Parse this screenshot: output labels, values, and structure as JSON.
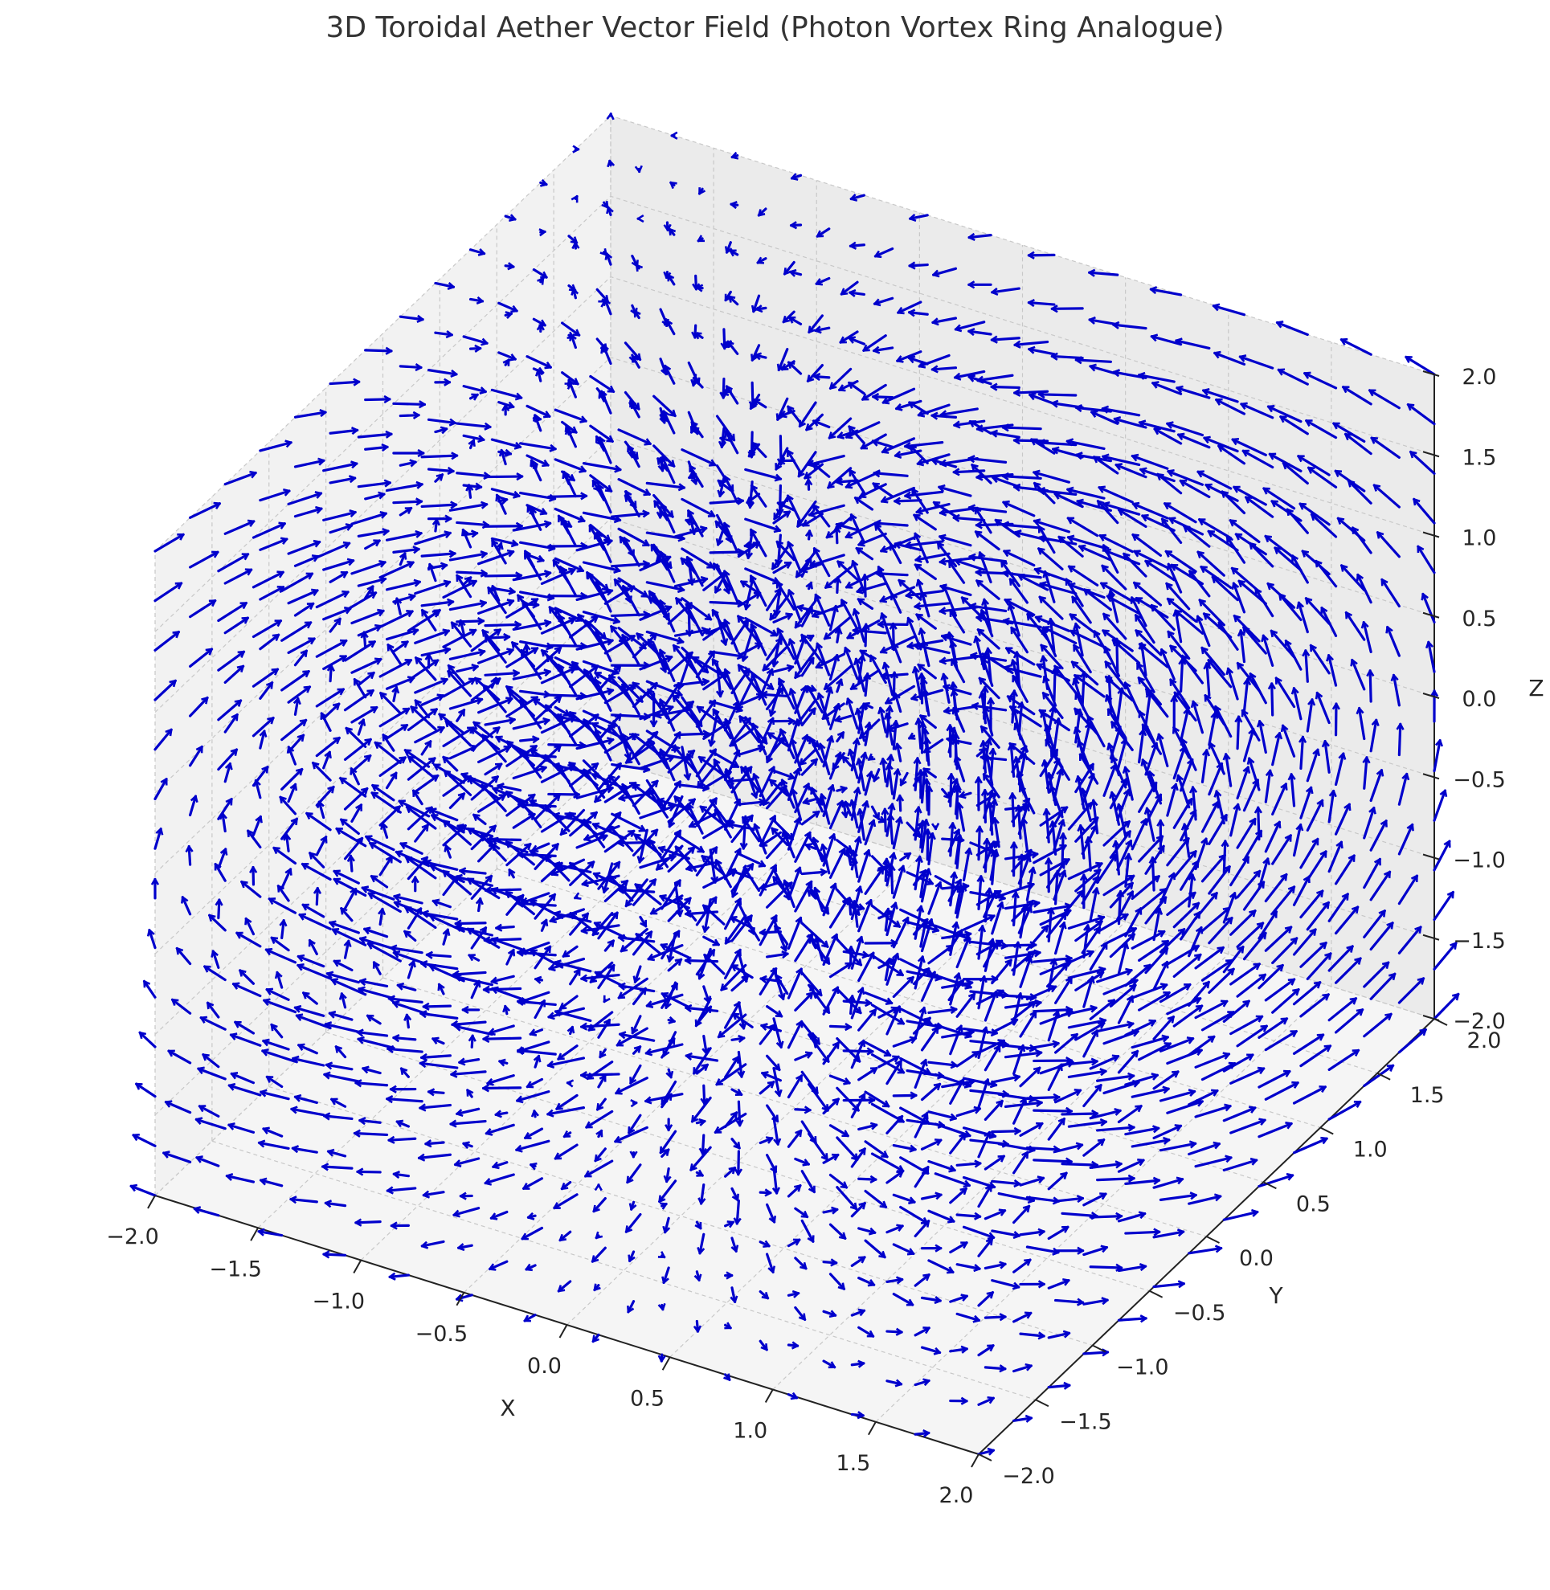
{
  "chart_data": {
    "type": "quiver3d",
    "title": "3D Toroidal Aether Vector Field (Photon Vortex Ring Analogue)",
    "xlabel": "X",
    "ylabel": "Y",
    "zlabel": "Z",
    "xlim": [
      -2.0,
      2.0
    ],
    "ylim": [
      -2.0,
      2.0
    ],
    "zlim": [
      -2.0,
      2.0
    ],
    "x_ticks": [
      "−2.0",
      "−1.5",
      "−1.0",
      "−0.5",
      "0.0",
      "0.5",
      "1.0",
      "1.5",
      "2.0"
    ],
    "y_ticks": [
      "−2.0",
      "−1.5",
      "−1.0",
      "−0.5",
      "0.0",
      "0.5",
      "1.0",
      "1.5",
      "2.0"
    ],
    "z_ticks": [
      "−2.0",
      "−1.5",
      "−1.0",
      "−0.5",
      "0.0",
      "0.5",
      "1.0",
      "1.5",
      "2.0"
    ],
    "grid": true,
    "color": "#0000cc",
    "field": {
      "model": "toroidal vortex ring",
      "grid_points_per_axis": 9,
      "ring_radius": 1.0
    }
  }
}
